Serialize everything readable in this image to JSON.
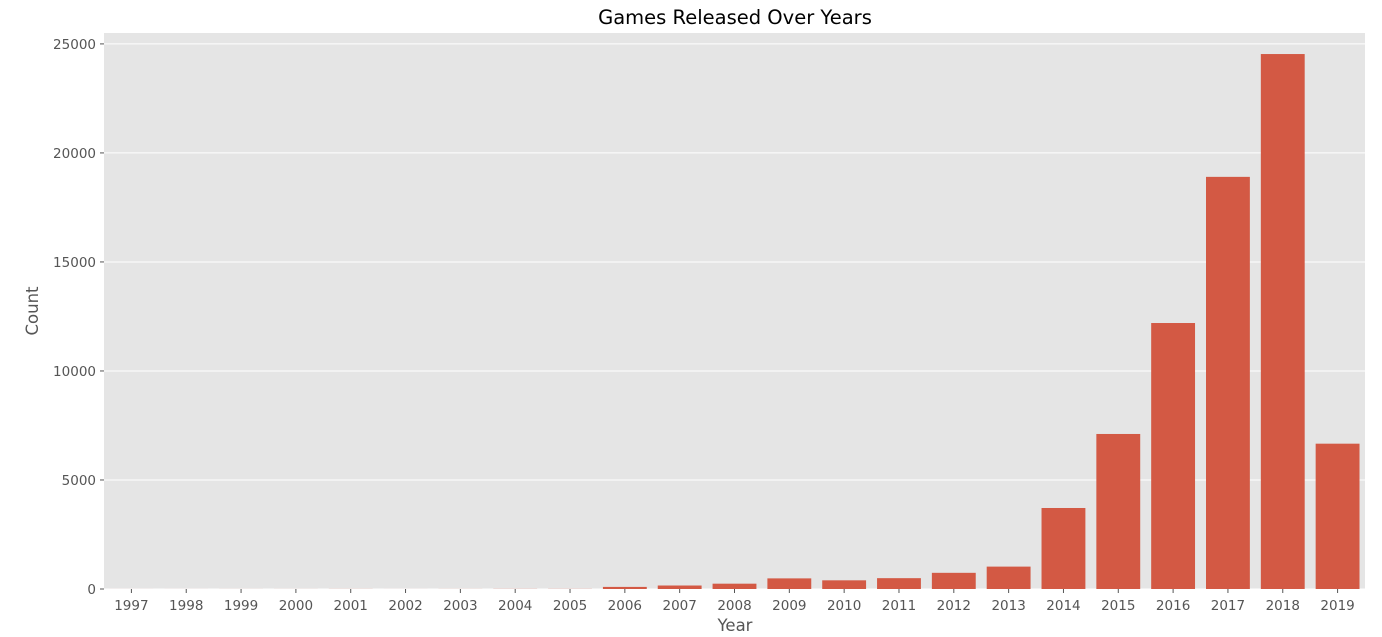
{
  "chart_data": {
    "type": "bar",
    "title": "Games Released Over Years",
    "xlabel": "Year",
    "ylabel": "Count",
    "categories": [
      "1997",
      "1998",
      "1999",
      "2000",
      "2001",
      "2002",
      "2003",
      "2004",
      "2005",
      "2006",
      "2007",
      "2008",
      "2009",
      "2010",
      "2011",
      "2012",
      "2013",
      "2014",
      "2015",
      "2016",
      "2017",
      "2018",
      "2019"
    ],
    "values": [
      1,
      1,
      2,
      2,
      4,
      1,
      3,
      6,
      6,
      96,
      160,
      244,
      487,
      398,
      497,
      742,
      1027,
      3715,
      7110,
      12199,
      18902,
      24535,
      6665
    ],
    "ylim": [
      0,
      25500
    ],
    "yticks": [
      0,
      5000,
      10000,
      15000,
      20000,
      25000
    ],
    "grid": true,
    "colors": {
      "bar": "#d35944",
      "panel": "#e5e5e5",
      "grid": "#ffffff",
      "text": "#555555"
    }
  }
}
